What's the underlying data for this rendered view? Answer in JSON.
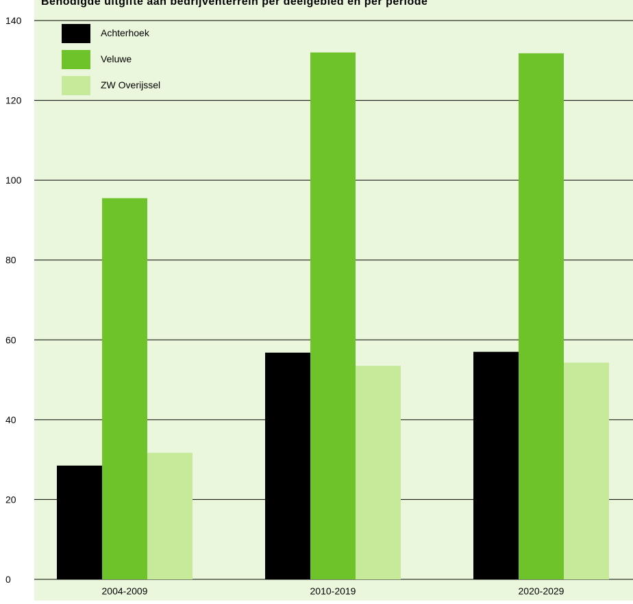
{
  "chart_data": {
    "type": "bar",
    "title": "Benodigde uitgifte aan bedrijventerrein per deelgebied en per periode",
    "xlabel": "",
    "ylabel": "",
    "ylim": [
      0,
      140
    ],
    "yticks": [
      0,
      20,
      40,
      60,
      80,
      100,
      120,
      140
    ],
    "grid": true,
    "legend_position": "top-left",
    "categories": [
      "2004-2009",
      "2010-2019",
      "2020-2029"
    ],
    "series": [
      {
        "name": "Achterhoek",
        "color": "#000000",
        "values": [
          28.5,
          56.8,
          57.0
        ]
      },
      {
        "name": "Veluwe",
        "color": "#6ec22a",
        "values": [
          95.5,
          132.0,
          131.8
        ]
      },
      {
        "name": "ZW Overijssel",
        "color": "#c6e99a",
        "values": [
          31.7,
          53.5,
          54.3
        ]
      }
    ],
    "background_color": "#eaf7dc"
  }
}
